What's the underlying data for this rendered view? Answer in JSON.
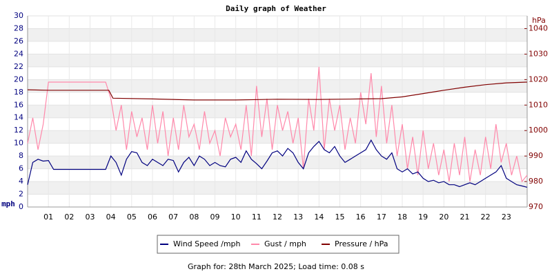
{
  "chart_data": {
    "type": "line",
    "title": "Daily graph of Weather",
    "y_label": "mph",
    "y2_label": "hPa",
    "caption": "Graph for: 28th March 2025; Load time: 0.08 s",
    "xlim": [
      0,
      24
    ],
    "xticks": [
      {
        "value": 1,
        "label": "01"
      },
      {
        "value": 2,
        "label": "02"
      },
      {
        "value": 3,
        "label": "03"
      },
      {
        "value": 4,
        "label": "04"
      },
      {
        "value": 5,
        "label": "05"
      },
      {
        "value": 6,
        "label": "06"
      },
      {
        "value": 7,
        "label": "07"
      },
      {
        "value": 8,
        "label": "08"
      },
      {
        "value": 9,
        "label": "09"
      },
      {
        "value": 10,
        "label": "10"
      },
      {
        "value": 11,
        "label": "11"
      },
      {
        "value": 12,
        "label": "12"
      },
      {
        "value": 13,
        "label": "13"
      },
      {
        "value": 14,
        "label": "14"
      },
      {
        "value": 15,
        "label": "15"
      },
      {
        "value": 16,
        "label": "16"
      },
      {
        "value": 17,
        "label": "17"
      },
      {
        "value": 18,
        "label": "18"
      },
      {
        "value": 19,
        "label": "19"
      },
      {
        "value": 20,
        "label": "20"
      },
      {
        "value": 21,
        "label": "21"
      },
      {
        "value": 22,
        "label": "22"
      },
      {
        "value": 23,
        "label": "23"
      }
    ],
    "ylim": [
      0,
      30
    ],
    "yticks": [
      0,
      2,
      4,
      6,
      8,
      10,
      12,
      14,
      16,
      18,
      20,
      22,
      24,
      26,
      28,
      30
    ],
    "y2lim": [
      970,
      1045
    ],
    "y2ticks": [
      970,
      980,
      990,
      1000,
      1010,
      1020,
      1030,
      1040
    ],
    "grid": true,
    "x": [
      0,
      0.25,
      0.5,
      0.75,
      1,
      1.25,
      1.5,
      1.75,
      2,
      2.25,
      2.5,
      2.75,
      3,
      3.25,
      3.5,
      3.75,
      4,
      4.25,
      4.5,
      4.75,
      5,
      5.25,
      5.5,
      5.75,
      6,
      6.25,
      6.5,
      6.75,
      7,
      7.25,
      7.5,
      7.75,
      8,
      8.25,
      8.5,
      8.75,
      9,
      9.25,
      9.5,
      9.75,
      10,
      10.25,
      10.5,
      10.75,
      11,
      11.25,
      11.5,
      11.75,
      12,
      12.25,
      12.5,
      12.75,
      13,
      13.25,
      13.5,
      13.75,
      14,
      14.25,
      14.5,
      14.75,
      15,
      15.25,
      15.5,
      15.75,
      16,
      16.25,
      16.5,
      16.75,
      17,
      17.25,
      17.5,
      17.75,
      18,
      18.25,
      18.5,
      18.75,
      19,
      19.25,
      19.5,
      19.75,
      20,
      20.25,
      20.5,
      20.75,
      21,
      21.25,
      21.5,
      21.75,
      22,
      22.25,
      22.5,
      22.75,
      23,
      23.25,
      23.5,
      23.75,
      24
    ],
    "series": [
      {
        "name": "Wind Speed /mph",
        "color": "#00007f",
        "values": [
          3.5,
          7,
          7.5,
          7.2,
          7.3,
          5.9,
          5.9,
          5.9,
          5.9,
          5.9,
          5.9,
          5.9,
          5.9,
          5.9,
          5.9,
          5.9,
          8,
          7,
          5,
          7.5,
          8.7,
          8.5,
          7,
          6.5,
          7.5,
          7,
          6.5,
          7.5,
          7.3,
          5.5,
          7,
          7.8,
          6.5,
          8,
          7.5,
          6.5,
          7,
          6.5,
          6.3,
          7.5,
          7.8,
          7,
          8.8,
          7.5,
          6.8,
          6,
          7.2,
          8.5,
          8.8,
          8,
          9.2,
          8.5,
          7,
          6,
          8.5,
          9.5,
          10.3,
          9,
          8.5,
          9.5,
          8,
          7,
          7.5,
          8,
          8.5,
          9,
          10.5,
          9,
          8,
          7.5,
          8.5,
          6,
          5.5,
          6,
          5.2,
          5.5,
          4.5,
          4,
          4.2,
          3.8,
          4,
          3.5,
          3.5,
          3.2,
          3.5,
          3.8,
          3.5,
          4,
          4.5,
          5,
          5.5,
          6.5,
          4.5,
          4,
          3.5,
          3.3,
          3.1
        ]
      },
      {
        "name": "Gust / mph",
        "color": "#ff88aa",
        "values": [
          10,
          14,
          9,
          13,
          19.6,
          19.6,
          19.6,
          19.6,
          19.6,
          19.6,
          19.6,
          19.6,
          19.6,
          19.6,
          19.6,
          19.6,
          17,
          12,
          16,
          9,
          15,
          11,
          14,
          9,
          16,
          10,
          15,
          8,
          14,
          9,
          16,
          11,
          13,
          9,
          15,
          10,
          12,
          8,
          14,
          11,
          13,
          9,
          16,
          8,
          19,
          11,
          17,
          9,
          16,
          12,
          15,
          10,
          14,
          6,
          17,
          12,
          22,
          9,
          17,
          12,
          16,
          9,
          14,
          10,
          18,
          13,
          21,
          11,
          19,
          10,
          16,
          8,
          13,
          6,
          11,
          5,
          12,
          6,
          10,
          5,
          9,
          4,
          10,
          5,
          11,
          4,
          9,
          5,
          11,
          6,
          13,
          7,
          10,
          5,
          8,
          4,
          5
        ]
      },
      {
        "name": "Pressure / hPa",
        "color": "#800000",
        "axis": "y2",
        "x": [
          0,
          1,
          2,
          3,
          3.9,
          4.1,
          6,
          8,
          10,
          12,
          14,
          16,
          17,
          18,
          19,
          20,
          21,
          22,
          23,
          24
        ],
        "values": [
          1016,
          1015.8,
          1015.8,
          1015.8,
          1015.8,
          1012.7,
          1012.4,
          1012,
          1012,
          1012.3,
          1012.2,
          1012.4,
          1012.5,
          1013.2,
          1014.5,
          1015.8,
          1017,
          1018,
          1018.7,
          1019
        ]
      }
    ]
  }
}
